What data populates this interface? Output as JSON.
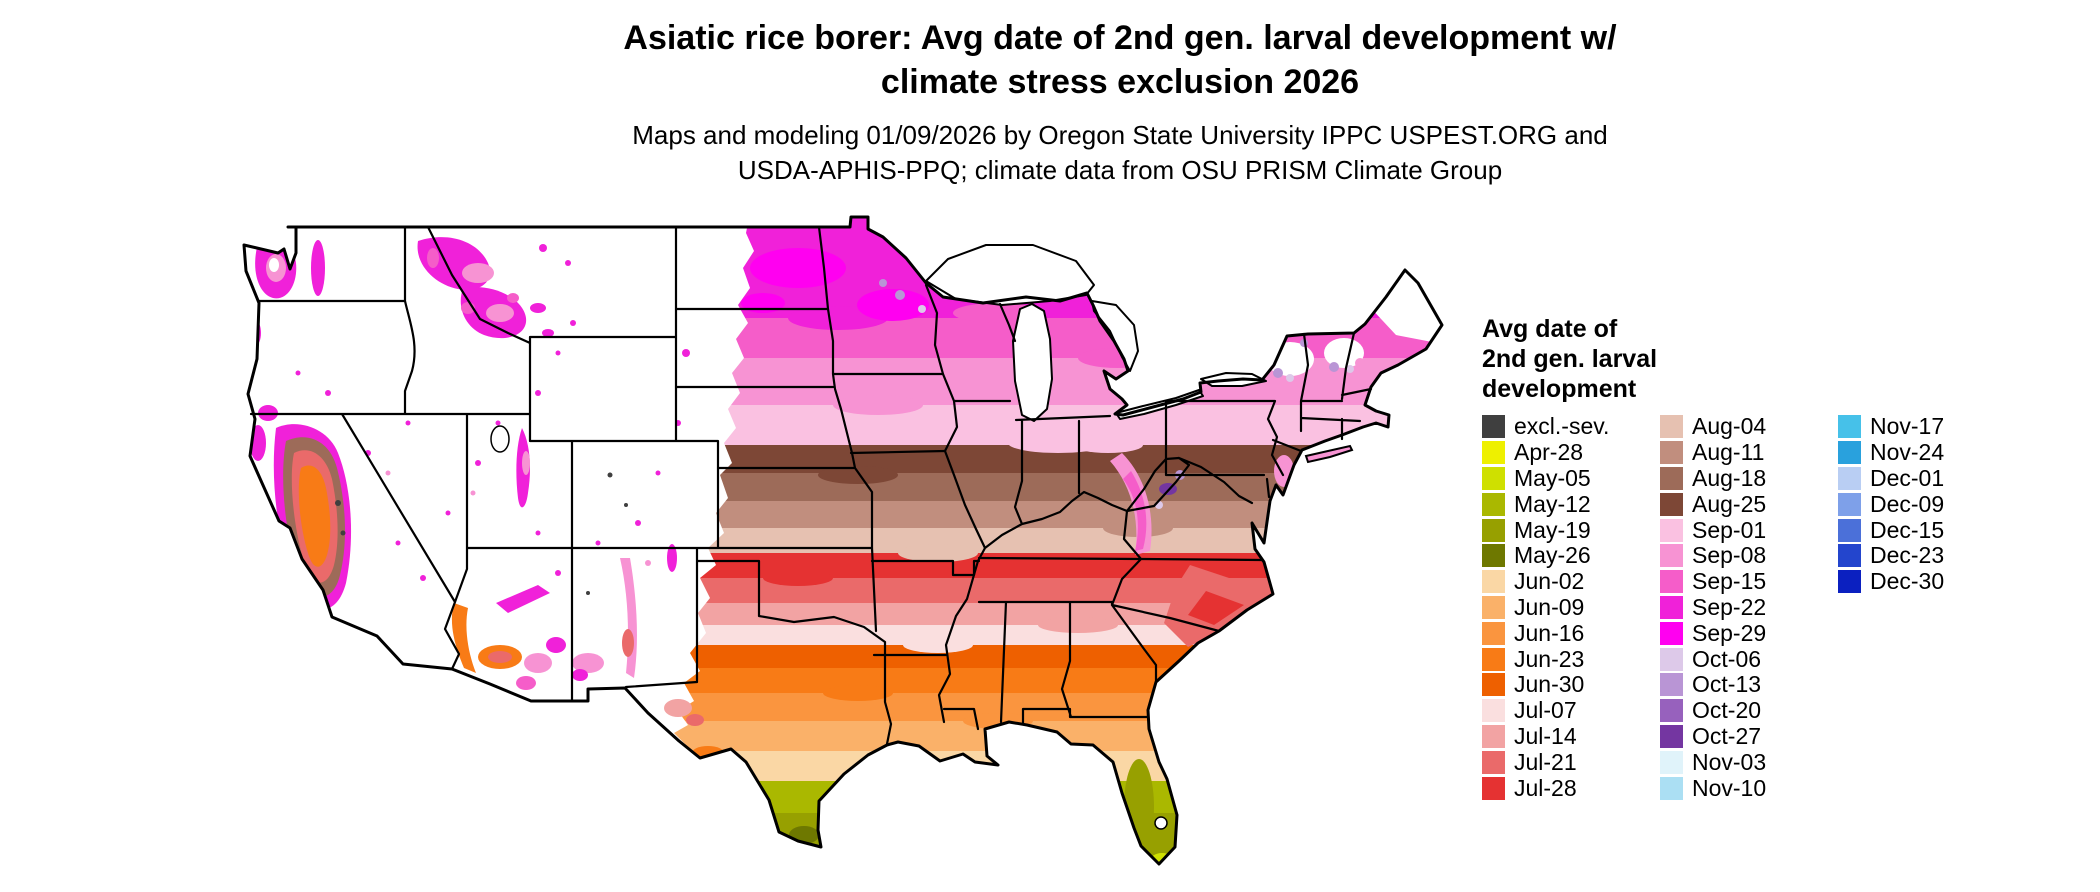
{
  "header": {
    "title1": "Asiatic rice borer: Avg date of 2nd gen. larval development w/",
    "title2": "climate stress exclusion 2026",
    "subtitle1": "Maps and modeling 01/09/2026 by Oregon State University IPPC USPEST.ORG and",
    "subtitle2": "USDA-APHIS-PPQ; climate data from OSU PRISM Climate Group"
  },
  "legend": {
    "title_line1": "Avg date of",
    "title_line2": "2nd gen. larval",
    "title_line3": "development",
    "columns": [
      [
        {
          "label": "excl.-sev.",
          "color": "#3f3f3f"
        },
        {
          "label": "Apr-28",
          "color": "#eef000"
        },
        {
          "label": "May-05",
          "color": "#cfe000"
        },
        {
          "label": "May-12",
          "color": "#aab800"
        },
        {
          "label": "May-19",
          "color": "#97a000"
        },
        {
          "label": "May-26",
          "color": "#6e7800"
        },
        {
          "label": "Jun-02",
          "color": "#fad7a5"
        },
        {
          "label": "Jun-09",
          "color": "#fab169"
        },
        {
          "label": "Jun-16",
          "color": "#fa953f"
        },
        {
          "label": "Jun-23",
          "color": "#f87b16"
        },
        {
          "label": "Jun-30",
          "color": "#ee6000"
        },
        {
          "label": "Jul-07",
          "color": "#fadfdf"
        },
        {
          "label": "Jul-14",
          "color": "#f2a3a3"
        },
        {
          "label": "Jul-21",
          "color": "#ea6a6a"
        },
        {
          "label": "Jul-28",
          "color": "#e53232"
        }
      ],
      [
        {
          "label": "Aug-04",
          "color": "#e6c1b1"
        },
        {
          "label": "Aug-11",
          "color": "#c18e7e"
        },
        {
          "label": "Aug-18",
          "color": "#9d6b59"
        },
        {
          "label": "Aug-25",
          "color": "#7d4736"
        },
        {
          "label": "Sep-01",
          "color": "#fac1e1"
        },
        {
          "label": "Sep-08",
          "color": "#f793d3"
        },
        {
          "label": "Sep-15",
          "color": "#f55dc9"
        },
        {
          "label": "Sep-22",
          "color": "#f021d9"
        },
        {
          "label": "Sep-29",
          "color": "#ff00f0"
        },
        {
          "label": "Oct-06",
          "color": "#ddc9e9"
        },
        {
          "label": "Oct-13",
          "color": "#b995d5"
        },
        {
          "label": "Oct-20",
          "color": "#9761bd"
        },
        {
          "label": "Oct-27",
          "color": "#7436a1"
        },
        {
          "label": "Nov-03",
          "color": "#e0f3fa"
        },
        {
          "label": "Nov-10",
          "color": "#abdff3"
        }
      ],
      [
        {
          "label": "Nov-17",
          "color": "#46c1e9"
        },
        {
          "label": "Nov-24",
          "color": "#29a1dd"
        },
        {
          "label": "Dec-01",
          "color": "#b9cef3"
        },
        {
          "label": "Dec-09",
          "color": "#7ea0e9"
        },
        {
          "label": "Dec-15",
          "color": "#4b70d9"
        },
        {
          "label": "Dec-23",
          "color": "#2345cd"
        },
        {
          "label": "Dec-30",
          "color": "#0b20c0"
        }
      ]
    ]
  }
}
